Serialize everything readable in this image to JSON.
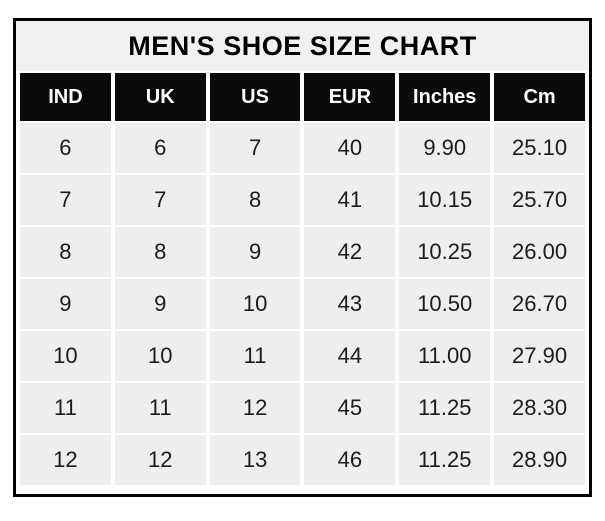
{
  "title": "MEN'S SHOE SIZE CHART",
  "colors": {
    "border": "#000000",
    "title_bg": "#f1f1f1",
    "header_bg": "#0a0a0a",
    "header_text": "#ffffff",
    "cell_bg": "#eeeeee",
    "cell_text": "#1c1c1c",
    "page_bg": "#ffffff"
  },
  "table": {
    "headers": [
      "IND",
      "UK",
      "US",
      "EUR",
      "Inches",
      "Cm"
    ],
    "rows": [
      [
        "6",
        "6",
        "7",
        "40",
        "9.90",
        "25.10"
      ],
      [
        "7",
        "7",
        "8",
        "41",
        "10.15",
        "25.70"
      ],
      [
        "8",
        "8",
        "9",
        "42",
        "10.25",
        "26.00"
      ],
      [
        "9",
        "9",
        "10",
        "43",
        "10.50",
        "26.70"
      ],
      [
        "10",
        "10",
        "11",
        "44",
        "11.00",
        "27.90"
      ],
      [
        "11",
        "11",
        "12",
        "45",
        "11.25",
        "28.30"
      ],
      [
        "12",
        "12",
        "13",
        "46",
        "11.25",
        "28.90"
      ]
    ]
  },
  "chart_data": {
    "type": "table",
    "title": "MEN'S SHOE SIZE CHART",
    "columns": [
      "IND",
      "UK",
      "US",
      "EUR",
      "Inches",
      "Cm"
    ],
    "rows": [
      [
        6,
        6,
        7,
        40,
        9.9,
        25.1
      ],
      [
        7,
        7,
        8,
        41,
        10.15,
        25.7
      ],
      [
        8,
        8,
        9,
        42,
        10.25,
        26.0
      ],
      [
        9,
        9,
        10,
        43,
        10.5,
        26.7
      ],
      [
        10,
        10,
        11,
        44,
        11.0,
        27.9
      ],
      [
        11,
        11,
        12,
        45,
        11.25,
        28.3
      ],
      [
        12,
        12,
        13,
        46,
        11.25,
        28.9
      ]
    ],
    "layout_hints": {
      "title_position": "top-center",
      "header_style": "inverted-black",
      "grid": "white-gutters"
    }
  }
}
